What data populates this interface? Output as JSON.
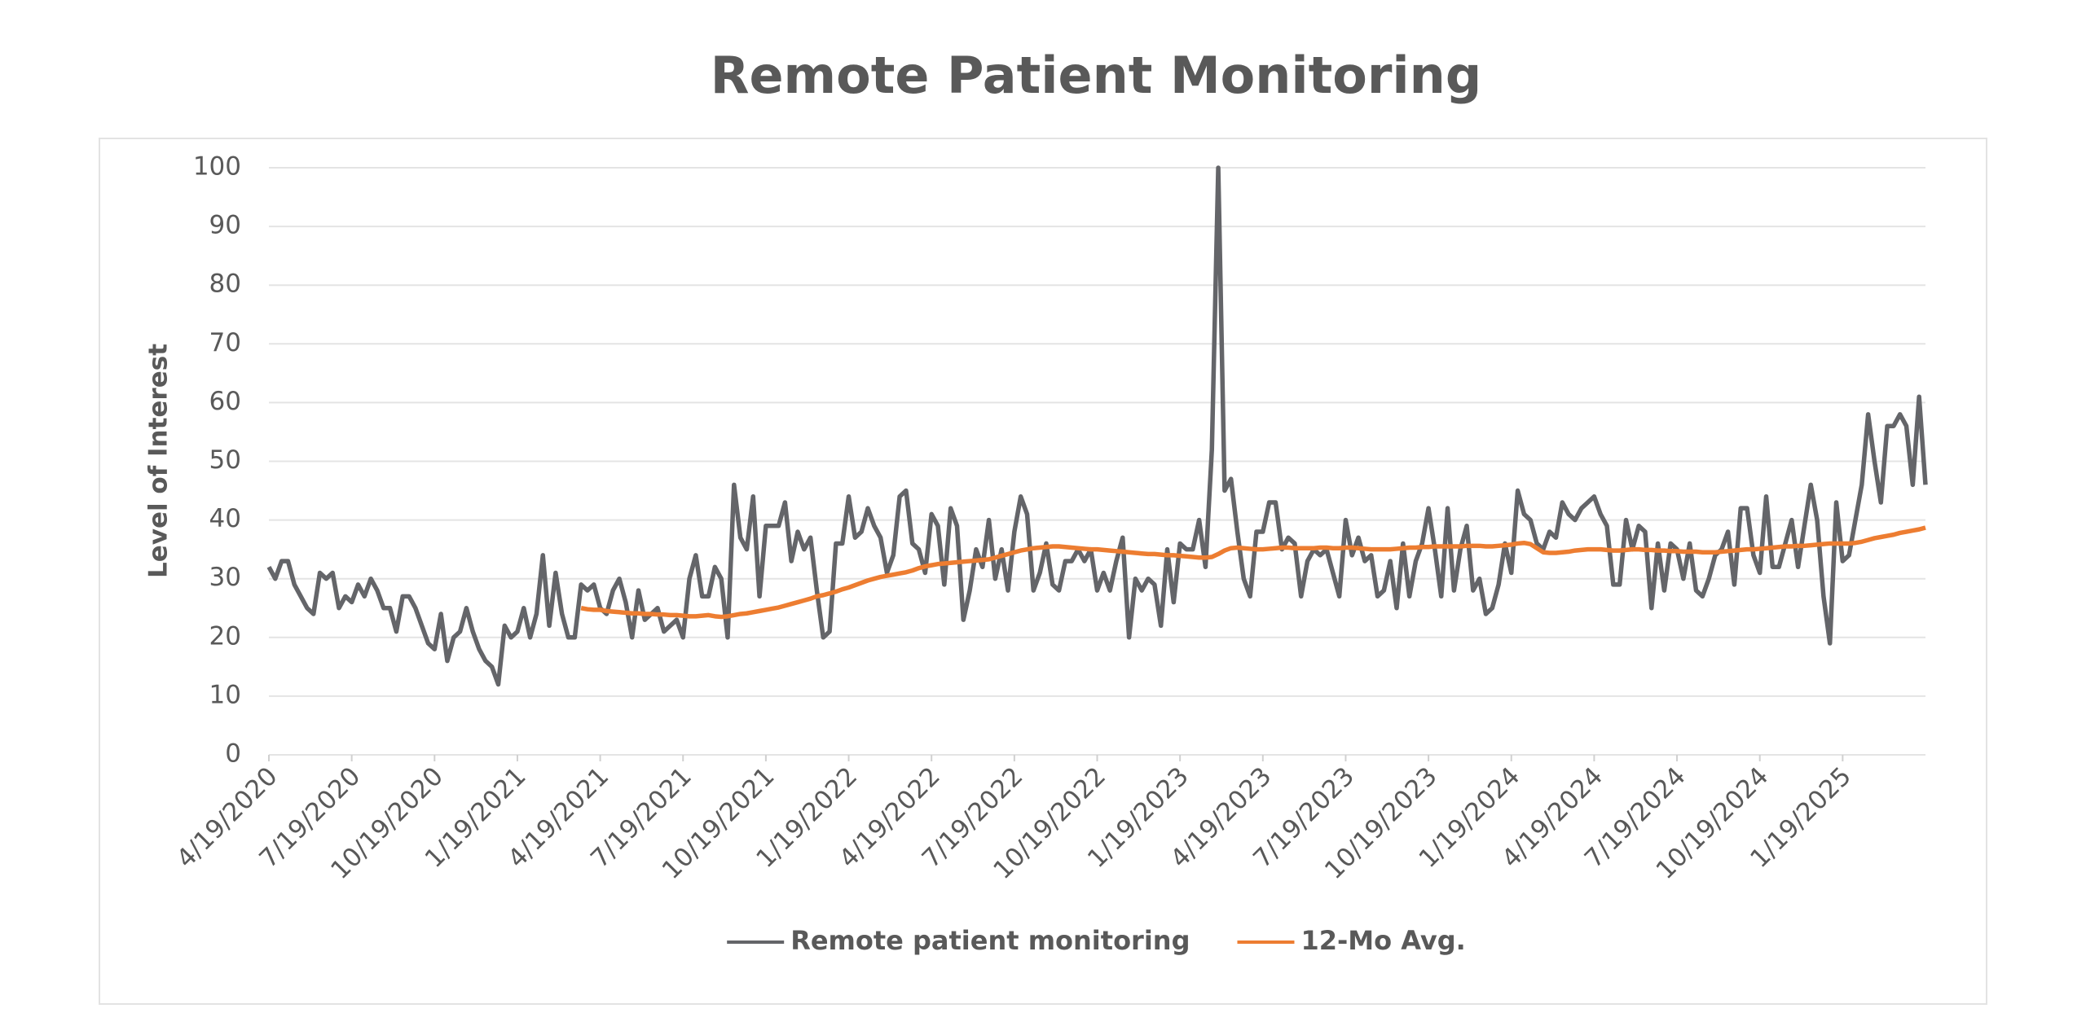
{
  "chart_data": {
    "type": "line",
    "title": "Remote Patient Monitoring",
    "y_label": "Level of Interest",
    "ylim": [
      0,
      100
    ],
    "yticks": [
      0,
      10,
      20,
      30,
      40,
      50,
      60,
      70,
      80,
      90,
      100
    ],
    "grid": true,
    "legend": "bottom",
    "categories": [
      "4/19/2020",
      null,
      null,
      null,
      null,
      null,
      null,
      null,
      null,
      null,
      null,
      null,
      null,
      "7/19/2020",
      null,
      null,
      null,
      null,
      null,
      null,
      null,
      null,
      null,
      null,
      null,
      null,
      "10/19/2020",
      null,
      null,
      null,
      null,
      null,
      null,
      null,
      null,
      null,
      null,
      null,
      null,
      "1/19/2021",
      null,
      null,
      null,
      null,
      null,
      null,
      null,
      null,
      null,
      null,
      null,
      null,
      "4/19/2021",
      null,
      null,
      null,
      null,
      null,
      null,
      null,
      null,
      null,
      null,
      null,
      null,
      "7/19/2021",
      null,
      null,
      null,
      null,
      null,
      null,
      null,
      null,
      null,
      null,
      null,
      null,
      "10/19/2021",
      null,
      null,
      null,
      null,
      null,
      null,
      null,
      null,
      null,
      null,
      null,
      null,
      "1/19/2022",
      null,
      null,
      null,
      null,
      null,
      null,
      null,
      null,
      null,
      null,
      null,
      null,
      "4/19/2022",
      null,
      null,
      null,
      null,
      null,
      null,
      null,
      null,
      null,
      null,
      null,
      null,
      "7/19/2022",
      null,
      null,
      null,
      null,
      null,
      null,
      null,
      null,
      null,
      null,
      null,
      null,
      "10/19/2022",
      null,
      null,
      null,
      null,
      null,
      null,
      null,
      null,
      null,
      null,
      null,
      null,
      "1/19/2023",
      null,
      null,
      null,
      null,
      null,
      null,
      null,
      null,
      null,
      null,
      null,
      null,
      "4/19/2023",
      null,
      null,
      null,
      null,
      null,
      null,
      null,
      null,
      null,
      null,
      null,
      null,
      "7/19/2023",
      null,
      null,
      null,
      null,
      null,
      null,
      null,
      null,
      null,
      null,
      null,
      null,
      "10/19/2023",
      null,
      null,
      null,
      null,
      null,
      null,
      null,
      null,
      null,
      null,
      null,
      null,
      "1/19/2024",
      null,
      null,
      null,
      null,
      null,
      null,
      null,
      null,
      null,
      null,
      null,
      null,
      "4/19/2024",
      null,
      null,
      null,
      null,
      null,
      null,
      null,
      null,
      null,
      null,
      null,
      null,
      "7/19/2024",
      null,
      null,
      null,
      null,
      null,
      null,
      null,
      null,
      null,
      null,
      null,
      null,
      "10/19/2024",
      null,
      null,
      null,
      null,
      null,
      null,
      null,
      null,
      null,
      null,
      null,
      null,
      "1/19/2025",
      null,
      null,
      null,
      null,
      null,
      null,
      null,
      null,
      null,
      null,
      null,
      null,
      null
    ],
    "series": [
      {
        "name": "Remote patient monitoring",
        "color": "#646569",
        "values": [
          32,
          30,
          33,
          33,
          29,
          27,
          25,
          24,
          31,
          30,
          31,
          25,
          27,
          26,
          29,
          27,
          30,
          28,
          25,
          25,
          21,
          27,
          27,
          25,
          22,
          19,
          18,
          24,
          16,
          20,
          21,
          25,
          21,
          18,
          16,
          15,
          12,
          22,
          20,
          21,
          25,
          20,
          24,
          34,
          22,
          31,
          24,
          20,
          20,
          29,
          28,
          29,
          25,
          24,
          28,
          30,
          26,
          20,
          28,
          23,
          24,
          25,
          21,
          22,
          23,
          20,
          30,
          34,
          27,
          27,
          32,
          30,
          20,
          46,
          37,
          35,
          44,
          27,
          39,
          39,
          39,
          43,
          33,
          38,
          35,
          37,
          28,
          20,
          21,
          36,
          36,
          44,
          37,
          38,
          42,
          39,
          37,
          31,
          34,
          44,
          45,
          36,
          35,
          31,
          41,
          39,
          29,
          42,
          39,
          23,
          28,
          35,
          32,
          40,
          30,
          35,
          28,
          38,
          44,
          41,
          28,
          31,
          36,
          29,
          28,
          33,
          33,
          35,
          33,
          35,
          28,
          31,
          28,
          33,
          37,
          20,
          30,
          28,
          30,
          29,
          22,
          35,
          26,
          36,
          35,
          35,
          40,
          32,
          52,
          100,
          45,
          47,
          38,
          30,
          27,
          38,
          38,
          43,
          43,
          35,
          37,
          36,
          27,
          33,
          35,
          34,
          35,
          31,
          27,
          40,
          34,
          37,
          33,
          34,
          27,
          28,
          33,
          25,
          36,
          27,
          33,
          36,
          42,
          35,
          27,
          42,
          28,
          35,
          39,
          28,
          30,
          24,
          25,
          29,
          36,
          31,
          45,
          41,
          40,
          36,
          35,
          38,
          37,
          43,
          41,
          40,
          42,
          43,
          44,
          41,
          39,
          29,
          29,
          40,
          35,
          39,
          38,
          25,
          36,
          28,
          36,
          35,
          30,
          36,
          28,
          27,
          30,
          34,
          35,
          38,
          29,
          42,
          42,
          34,
          31,
          44,
          32,
          32,
          36,
          40,
          32,
          39,
          46,
          40,
          27,
          19,
          43,
          33,
          34,
          40,
          46,
          58,
          50,
          43,
          56,
          56,
          58,
          56,
          46,
          61,
          46
        ]
      },
      {
        "name": "12-Mo Avg.",
        "color": "#ed7d31",
        "values": [
          null,
          null,
          null,
          null,
          null,
          null,
          null,
          null,
          null,
          null,
          null,
          null,
          null,
          null,
          null,
          null,
          null,
          null,
          null,
          null,
          null,
          null,
          null,
          null,
          null,
          null,
          null,
          null,
          null,
          null,
          null,
          null,
          null,
          null,
          null,
          null,
          null,
          null,
          null,
          null,
          null,
          null,
          null,
          null,
          null,
          null,
          null,
          null,
          null,
          25,
          24.8,
          24.7,
          24.7,
          24.5,
          24.4,
          24.3,
          24.2,
          24.1,
          24.1,
          24,
          24,
          23.9,
          23.9,
          23.8,
          23.8,
          23.7,
          23.6,
          23.6,
          23.7,
          23.8,
          23.6,
          23.5,
          23.6,
          23.8,
          24,
          24.1,
          24.3,
          24.5,
          24.7,
          24.9,
          25.1,
          25.4,
          25.7,
          26,
          26.3,
          26.6,
          27,
          27.2,
          27.5,
          27.8,
          28.2,
          28.5,
          28.9,
          29.3,
          29.7,
          30,
          30.3,
          30.5,
          30.7,
          30.9,
          31.1,
          31.4,
          31.8,
          32.1,
          32.3,
          32.5,
          32.6,
          32.7,
          32.8,
          32.9,
          33,
          33.1,
          33.2,
          33.3,
          33.6,
          33.9,
          34.2,
          34.5,
          34.8,
          35,
          35.2,
          35.3,
          35.4,
          35.5,
          35.5,
          35.4,
          35.3,
          35.2,
          35.1,
          35,
          35,
          34.9,
          34.8,
          34.7,
          34.6,
          34.5,
          34.4,
          34.3,
          34.2,
          34.2,
          34.1,
          34,
          34,
          33.9,
          33.8,
          33.7,
          33.6,
          33.6,
          33.7,
          34.2,
          34.8,
          35.2,
          35.3,
          35.2,
          35.1,
          35,
          35,
          35.1,
          35.2,
          35.3,
          35.3,
          35.2,
          35.2,
          35.2,
          35.2,
          35.3,
          35.3,
          35.2,
          35.2,
          35.3,
          35.3,
          35.2,
          35.1,
          35,
          35,
          35,
          35,
          35.1,
          35.2,
          35.3,
          35.3,
          35.4,
          35.4,
          35.5,
          35.5,
          35.5,
          35.5,
          35.5,
          35.6,
          35.6,
          35.6,
          35.5,
          35.5,
          35.6,
          35.7,
          35.8,
          36,
          36.1,
          35.9,
          35.2,
          34.5,
          34.4,
          34.4,
          34.5,
          34.6,
          34.8,
          34.9,
          35,
          35,
          35,
          34.9,
          34.8,
          34.8,
          34.9,
          35,
          35,
          34.9,
          34.9,
          34.8,
          34.8,
          34.7,
          34.7,
          34.6,
          34.6,
          34.6,
          34.5,
          34.5,
          34.5,
          34.6,
          34.7,
          34.8,
          34.9,
          35,
          35,
          35.1,
          35.2,
          35.3,
          35.4,
          35.5,
          35.5,
          35.6,
          35.6,
          35.7,
          35.8,
          35.9,
          36,
          36,
          36,
          36,
          36.1,
          36.3,
          36.6,
          36.9,
          37.1,
          37.3,
          37.5,
          37.8,
          38,
          38.2,
          38.4,
          38.7
        ]
      }
    ]
  }
}
